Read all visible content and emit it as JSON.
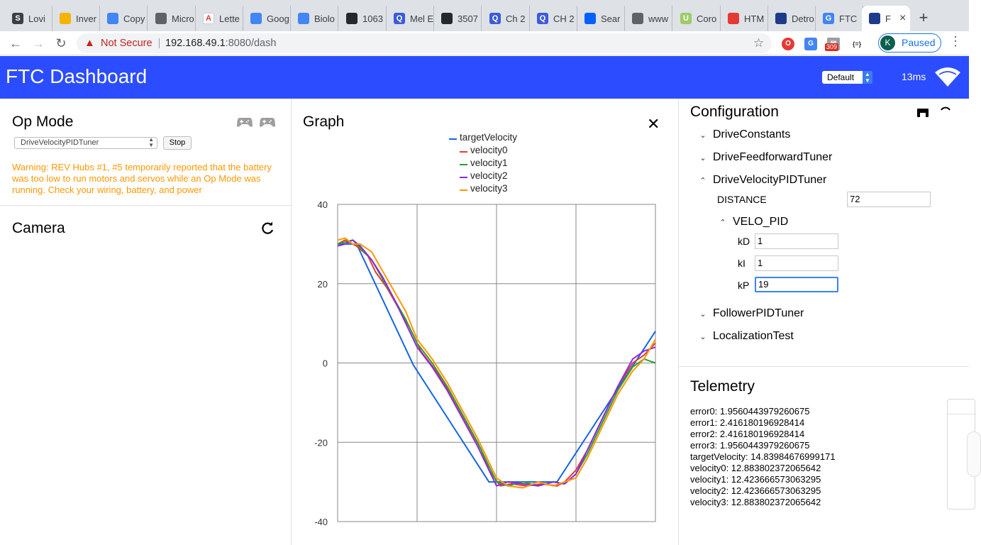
{
  "browser": {
    "tabs": [
      {
        "label": "Lovi",
        "color": "#3c4043",
        "glyph": "S"
      },
      {
        "label": "Inver",
        "color": "#f4b400",
        "glyph": ""
      },
      {
        "label": "Copy",
        "color": "#4285f4",
        "glyph": ""
      },
      {
        "label": "Micro",
        "color": "#5f6368",
        "glyph": ""
      },
      {
        "label": "Lette",
        "color": "#ffffff",
        "glyph": "A"
      },
      {
        "label": "Goog",
        "color": "#4285f4",
        "glyph": ""
      },
      {
        "label": "Biolo",
        "color": "#4285f4",
        "glyph": ""
      },
      {
        "label": "1063",
        "color": "#24292e",
        "glyph": ""
      },
      {
        "label": "Mel E",
        "color": "#3b5bdb",
        "glyph": "Q"
      },
      {
        "label": "3507",
        "color": "#24292e",
        "glyph": ""
      },
      {
        "label": "Ch 2",
        "color": "#3b5bdb",
        "glyph": "Q"
      },
      {
        "label": "CH 2",
        "color": "#3b5bdb",
        "glyph": "Q"
      },
      {
        "label": "Sear",
        "color": "#0061fe",
        "glyph": ""
      },
      {
        "label": "www",
        "color": "#5f6368",
        "glyph": ""
      },
      {
        "label": "Coro",
        "color": "#9ccc65",
        "glyph": "U"
      },
      {
        "label": "HTM",
        "color": "#e53935",
        "glyph": ""
      },
      {
        "label": "Detro",
        "color": "#1e3a8a",
        "glyph": ""
      },
      {
        "label": "FTC",
        "color": "#4285f4",
        "glyph": "G"
      },
      {
        "label": "F",
        "color": "#1e3a8a",
        "glyph": ""
      }
    ],
    "not_secure": "Not Secure",
    "url_host": "192.168.49.1",
    "url_path": ":8080/dash",
    "mail_badge": "309",
    "ext_json": "{=}",
    "profile_initial": "K",
    "profile_status": "Paused"
  },
  "header": {
    "title": "FTC Dashboard",
    "layout_preset": "Default",
    "ping": "13ms"
  },
  "opmode": {
    "title": "Op Mode",
    "selected": "DriveVelocityPIDTuner",
    "stop_label": "Stop",
    "warning": "Warning: REV Hubs #1, #5 temporarily reported that the battery was too low to run motors and servos while an Op Mode was running. Check your wiring, battery, and power"
  },
  "camera": {
    "title": "Camera"
  },
  "graph": {
    "title": "Graph"
  },
  "config": {
    "title": "Configuration",
    "groups": [
      "DriveConstants",
      "DriveFeedforwardTuner",
      "DriveVelocityPIDTuner",
      "FollowerPIDTuner",
      "LocalizationTest"
    ],
    "distance_label": "DISTANCE",
    "distance_value": "72",
    "velo_pid_label": "VELO_PID",
    "kd_label": "kD",
    "kd_value": "1",
    "ki_label": "kI",
    "ki_value": "1",
    "kp_label": "kP",
    "kp_value": "19"
  },
  "telemetry": {
    "title": "Telemetry",
    "lines": [
      "error0: 1.9560443979260675",
      "error1: 2.416180196928414",
      "error2: 2.416180196928414",
      "error3: 1.9560443979260675",
      "targetVelocity: 14.83984676999171",
      "velocity0: 12.883802372065642",
      "velocity1: 12.423666573063295",
      "velocity2: 12.423666573063295",
      "velocity3: 12.883802372065642"
    ]
  },
  "chart_data": {
    "type": "line",
    "ylim": [
      -40,
      40
    ],
    "yticks": [
      "40",
      "20",
      "0",
      "-20",
      "-40"
    ],
    "xlim": [
      0,
      8.4
    ],
    "grid": true,
    "legend": "top-center",
    "series": [
      {
        "name": "targetVelocity",
        "color": "#1565e0",
        "x": [
          0,
          0.5,
          2.0,
          4.0,
          5.8,
          8.4
        ],
        "values": [
          30,
          30,
          -0.5,
          -30,
          -30,
          8
        ]
      },
      {
        "name": "velocity0",
        "color": "#e53935",
        "x": [
          0,
          0.2,
          0.4,
          0.5,
          0.8,
          1.0,
          1.3,
          1.6,
          1.9,
          2.2,
          2.6,
          3.0,
          3.4,
          3.8,
          4.0,
          4.3,
          4.6,
          5.0,
          5.4,
          5.8,
          6.0,
          6.3,
          6.6,
          7.0,
          7.4,
          7.8,
          8.1,
          8.4
        ],
        "values": [
          30,
          31,
          30,
          29.5,
          27,
          23,
          19,
          14,
          9,
          3,
          -2,
          -8,
          -15,
          -22,
          -27,
          -31,
          -30.5,
          -31,
          -30.5,
          -31,
          -30,
          -27,
          -22,
          -14,
          -6,
          0,
          2,
          5
        ]
      },
      {
        "name": "velocity1",
        "color": "#2ca02c",
        "x": [
          0,
          0.2,
          0.4,
          0.6,
          0.9,
          1.2,
          1.5,
          1.8,
          2.1,
          2.5,
          2.9,
          3.3,
          3.7,
          4.0,
          4.2,
          4.5,
          4.9,
          5.3,
          5.7,
          6.0,
          6.3,
          6.6,
          7.0,
          7.4,
          7.8,
          8.1,
          8.4
        ],
        "values": [
          30,
          30.5,
          31,
          29,
          26,
          21,
          16,
          11,
          5,
          0,
          -6,
          -13,
          -20,
          -26,
          -30,
          -31,
          -30,
          -31,
          -30,
          -30.5,
          -28,
          -23,
          -15,
          -7,
          -1,
          1,
          0
        ]
      },
      {
        "name": "velocity2",
        "color": "#8a2be2",
        "x": [
          0,
          0.2,
          0.4,
          0.6,
          0.9,
          1.2,
          1.5,
          1.8,
          2.1,
          2.5,
          2.9,
          3.3,
          3.7,
          4.0,
          4.2,
          4.5,
          4.9,
          5.3,
          5.7,
          6.0,
          6.3,
          6.6,
          7.0,
          7.4,
          7.8,
          8.1,
          8.4
        ],
        "values": [
          29.5,
          30,
          31,
          29.5,
          26,
          21.5,
          16,
          10,
          4,
          -1,
          -7,
          -14,
          -21,
          -27,
          -31,
          -30,
          -30.5,
          -31,
          -30,
          -30.5,
          -28,
          -22,
          -14,
          -6,
          1,
          3,
          4
        ]
      },
      {
        "name": "velocity3",
        "color": "#ff9800",
        "x": [
          0,
          0.2,
          0.4,
          0.6,
          0.9,
          1.2,
          1.5,
          1.8,
          2.1,
          2.5,
          2.9,
          3.3,
          3.7,
          4.0,
          4.2,
          4.5,
          4.9,
          5.3,
          5.7,
          6.0,
          6.3,
          6.6,
          7.0,
          7.4,
          7.8,
          8.1,
          8.4
        ],
        "values": [
          31,
          31.5,
          30,
          30,
          28,
          23,
          18,
          13,
          6,
          1,
          -5,
          -12,
          -19,
          -25,
          -29,
          -31,
          -31.5,
          -30,
          -31,
          -30,
          -29,
          -24,
          -16,
          -8,
          -2,
          1,
          6
        ]
      }
    ]
  }
}
